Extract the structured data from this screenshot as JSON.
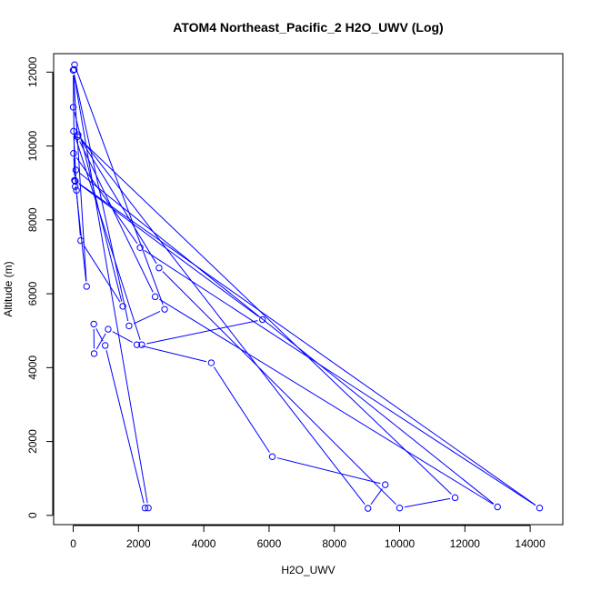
{
  "chart_data": {
    "type": "line",
    "title": "ATOM4 Northeast_Pacific_2 H2O_UWV (Log)",
    "xlabel": "H2O_UWV",
    "ylabel": "Altitude (m)",
    "xlim": [
      -600,
      15000
    ],
    "ylim": [
      -250,
      12500
    ],
    "xticks": [
      0,
      2000,
      4000,
      6000,
      8000,
      10000,
      12000,
      14000
    ],
    "yticks": [
      0,
      2000,
      4000,
      6000,
      8000,
      10000,
      12000
    ],
    "xtick_labels": [
      "0",
      "2000",
      "4000",
      "6000",
      "8000",
      "10000",
      "12000",
      "14000"
    ],
    "ytick_labels": [
      "0",
      "2000",
      "4000",
      "6000",
      "8000",
      "10000",
      "12000"
    ],
    "grid": false,
    "line_color": "#0000ff",
    "series": [
      {
        "x": [
          2200,
          980,
          630,
          640,
          1070,
          1950,
          4230,
          6100,
          9560,
          9030,
          150,
          2630,
          10000,
          11700,
          130,
          2510,
          13000,
          80,
          60,
          60,
          10,
          2050,
          14290,
          40,
          0,
          1710,
          2800,
          40,
          30,
          0,
          1520,
          230,
          100,
          10,
          2100,
          5800,
          60,
          410,
          0,
          2300
        ],
        "y": [
          200,
          4600,
          5180,
          4380,
          5040,
          4620,
          4130,
          1590,
          830,
          190,
          10300,
          6700,
          200,
          480,
          10250,
          5920,
          230,
          9350,
          8900,
          9050,
          9800,
          7250,
          200,
          9070,
          12050,
          5130,
          5580,
          12200,
          12070,
          11050,
          5660,
          7440,
          8800,
          10400,
          4620,
          5300,
          9050,
          6200,
          12050,
          200
        ]
      }
    ]
  }
}
